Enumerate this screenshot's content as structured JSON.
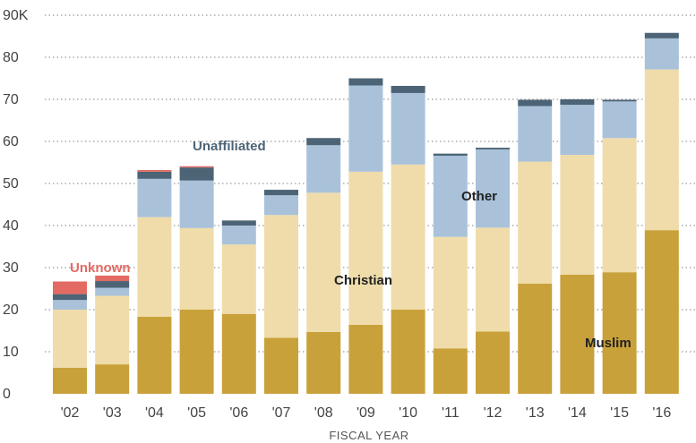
{
  "chart_data": {
    "type": "bar",
    "stacked": true,
    "xlabel": "FISCAL YEAR",
    "ylabel": "",
    "ylim": [
      0,
      90
    ],
    "yticks": [
      "0",
      "10",
      "20",
      "30",
      "40",
      "50",
      "60",
      "70",
      "80",
      "90K"
    ],
    "grid": true,
    "categories": [
      "'02",
      "'03",
      "'04",
      "'05",
      "'06",
      "'07",
      "'08",
      "'09",
      "'10",
      "'11",
      "'12",
      "'13",
      "'14",
      "'15",
      "'16"
    ],
    "series": [
      {
        "name": "Muslim",
        "color": "#c9a13a",
        "values": [
          6.2,
          7,
          18.3,
          20,
          19,
          13.3,
          14.7,
          16.4,
          20,
          10.8,
          14.8,
          26.2,
          28.3,
          28.9,
          38.9
        ]
      },
      {
        "name": "Christian",
        "color": "#efdcaa",
        "values": [
          13.8,
          16.3,
          23.7,
          19.4,
          16.5,
          29.2,
          33.1,
          36.4,
          34.5,
          26.5,
          24.7,
          29,
          28.5,
          31.9,
          38.2
        ]
      },
      {
        "name": "Other",
        "color": "#a9c2da",
        "values": [
          2.3,
          1.9,
          9.1,
          11.3,
          4.5,
          4.7,
          11.3,
          20.5,
          17,
          19.3,
          18.6,
          13.2,
          11.9,
          8.7,
          7.4
        ]
      },
      {
        "name": "Unaffiliated",
        "color": "#4c6476",
        "values": [
          1.4,
          1.6,
          1.7,
          3.1,
          1.2,
          1.3,
          1.7,
          1.7,
          1.7,
          0.5,
          0.4,
          1.5,
          1.3,
          0.4,
          1.3
        ]
      },
      {
        "name": "Unknown",
        "color": "#e26a63",
        "values": [
          3,
          1.3,
          0.4,
          0.3,
          0,
          0,
          0,
          0,
          0,
          0,
          0,
          0,
          0,
          0,
          0
        ]
      }
    ],
    "annotations": [
      {
        "text": "Unaffiliated",
        "color": "#4c6476"
      },
      {
        "text": "Unknown",
        "color": "#e26a63"
      },
      {
        "text": "Christian",
        "color": "#222222"
      },
      {
        "text": "Other",
        "color": "#222222"
      },
      {
        "text": "Muslim",
        "color": "#222222"
      }
    ]
  }
}
